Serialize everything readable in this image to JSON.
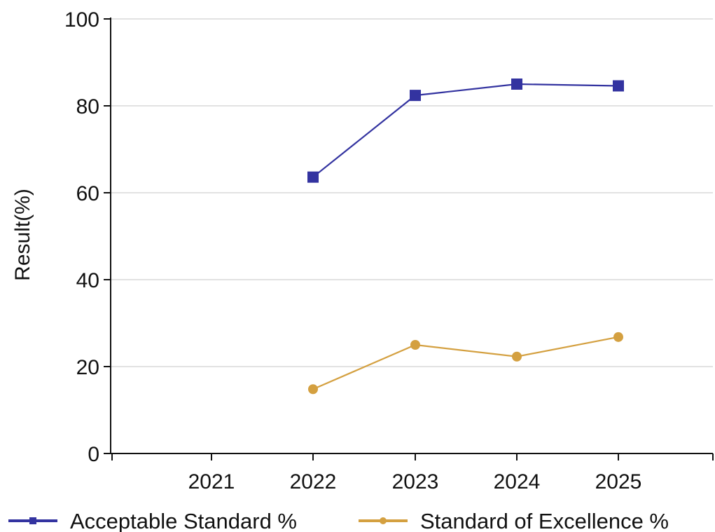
{
  "chart_data": {
    "type": "line",
    "title": "",
    "xlabel": "",
    "ylabel": "Result(%)",
    "categories": [
      "2021",
      "2022",
      "2023",
      "2024",
      "2025"
    ],
    "ylim": [
      0,
      100
    ],
    "yticks": [
      0,
      20,
      40,
      60,
      80,
      100
    ],
    "grid": true,
    "legend_position": "bottom",
    "series": [
      {
        "name": "Acceptable Standard %",
        "color": "#3333a0",
        "marker": "square",
        "values": [
          null,
          63.6,
          82.4,
          85.0,
          84.6
        ]
      },
      {
        "name": "Standard of Excellence %",
        "color": "#d4a040",
        "marker": "circle",
        "values": [
          null,
          14.8,
          25.0,
          22.3,
          26.8
        ]
      }
    ]
  }
}
